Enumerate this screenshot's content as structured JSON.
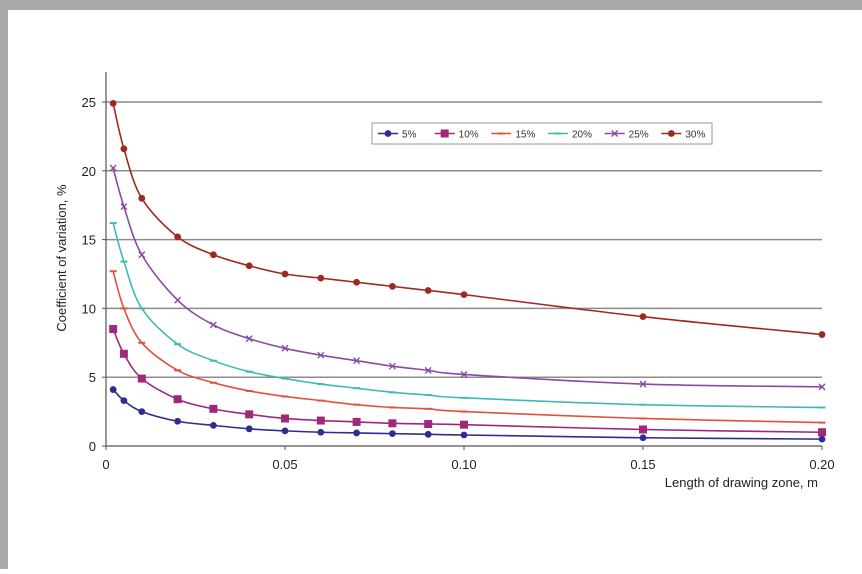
{
  "chart_data": {
    "type": "line",
    "title": "",
    "xlabel": "Length of drawing zone, m",
    "ylabel": "Coefficient of variation, %",
    "xlim": [
      0,
      0.2
    ],
    "ylim": [
      0,
      25
    ],
    "x_ticks": [
      0,
      0.05,
      0.1,
      0.15,
      0.2
    ],
    "x_tick_labels": [
      "0",
      "0.05",
      "0.10",
      "0.15",
      "0.20"
    ],
    "y_ticks": [
      0,
      5,
      10,
      15,
      20,
      25
    ],
    "y_tick_labels": [
      "0",
      "5",
      "10",
      "15",
      "20",
      "25"
    ],
    "grid": "horizontal",
    "legend_position": "top-right",
    "x": [
      0.002,
      0.005,
      0.01,
      0.02,
      0.03,
      0.04,
      0.05,
      0.06,
      0.07,
      0.08,
      0.09,
      0.1,
      0.15,
      0.2
    ],
    "series": [
      {
        "name": "5%",
        "color": "#2e2e8c",
        "marker": "circle",
        "values": [
          4.1,
          3.3,
          2.5,
          1.8,
          1.5,
          1.25,
          1.1,
          1.0,
          0.95,
          0.9,
          0.85,
          0.8,
          0.6,
          0.5
        ]
      },
      {
        "name": "10%",
        "color": "#a0287a",
        "marker": "square",
        "values": [
          8.5,
          6.7,
          4.9,
          3.4,
          2.7,
          2.3,
          2.0,
          1.85,
          1.75,
          1.65,
          1.6,
          1.55,
          1.2,
          1.0
        ]
      },
      {
        "name": "15%",
        "color": "#e3503c",
        "marker": "dash",
        "values": [
          12.7,
          10.0,
          7.5,
          5.5,
          4.6,
          4.0,
          3.6,
          3.3,
          3.0,
          2.8,
          2.7,
          2.5,
          2.0,
          1.7
        ]
      },
      {
        "name": "20%",
        "color": "#3fbab2",
        "marker": "dash",
        "values": [
          16.2,
          13.4,
          10.0,
          7.4,
          6.2,
          5.4,
          4.9,
          4.5,
          4.2,
          3.9,
          3.7,
          3.5,
          3.0,
          2.8
        ]
      },
      {
        "name": "25%",
        "color": "#8a4aa3",
        "marker": "cross",
        "values": [
          20.2,
          17.4,
          13.9,
          10.6,
          8.8,
          7.8,
          7.1,
          6.6,
          6.2,
          5.8,
          5.5,
          5.2,
          4.5,
          4.3
        ]
      },
      {
        "name": "30%",
        "color": "#9c2a22",
        "marker": "circle",
        "values": [
          24.9,
          21.6,
          18.0,
          15.2,
          13.9,
          13.1,
          12.5,
          12.2,
          11.9,
          11.6,
          11.3,
          11.0,
          9.4,
          8.1
        ]
      }
    ]
  }
}
